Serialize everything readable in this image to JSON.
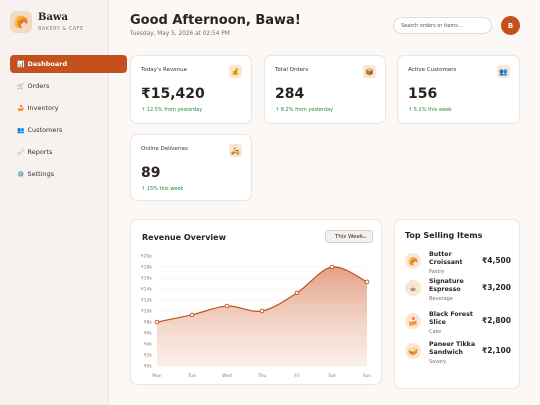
{
  "brand": {
    "icon": "🥐",
    "name": "Bawa",
    "tagline": "BAKERY & CAFE"
  },
  "nav": [
    {
      "icon": "📊",
      "label": "Dashboard",
      "active": true
    },
    {
      "icon": "🛒",
      "label": "Orders",
      "active": false
    },
    {
      "icon": "🍰",
      "label": "Inventory",
      "active": false
    },
    {
      "icon": "👥",
      "label": "Customers",
      "active": false
    },
    {
      "icon": "📈",
      "label": "Reports",
      "active": false
    },
    {
      "icon": "⚙️",
      "label": "Settings",
      "active": false
    }
  ],
  "header": {
    "greeting": "Good Afternoon, Bawa!",
    "date": "Tuesday, May 5, 2026 at 02:54 PM",
    "search": "Search orders or items...",
    "avatar": "B"
  },
  "stats": [
    {
      "label": "Today's Revenue",
      "icon": "💰",
      "value": "₹15,420",
      "change": "↑ 12.5% from yesterday"
    },
    {
      "label": "Total Orders",
      "icon": "📦",
      "value": "284",
      "change": "↑ 8.2% from yesterday"
    },
    {
      "label": "Active Customers",
      "icon": "👥",
      "value": "156",
      "change": "↑ 5.1% this week"
    },
    {
      "label": "Online Deliveries",
      "icon": "🛵",
      "value": "89",
      "change": "↑ 15% this week"
    }
  ],
  "range_select": "This Week",
  "chart_data": {
    "type": "line",
    "title": "Revenue Overview",
    "categories": [
      "Mon",
      "Tue",
      "Wed",
      "Thu",
      "Fri",
      "Sat",
      "Sun"
    ],
    "values": [
      8000,
      9300,
      10900,
      10000,
      13300,
      18000,
      15300
    ],
    "color": "#c4501b",
    "ylim": [
      0,
      20000
    ],
    "yticks": [
      {
        "value": 0,
        "label": "₹0k"
      },
      {
        "value": 2000,
        "label": "₹2k"
      },
      {
        "value": 4000,
        "label": "₹4k"
      },
      {
        "value": 6000,
        "label": "₹6k"
      },
      {
        "value": 8000,
        "label": "₹8k"
      },
      {
        "value": 10000,
        "label": "₹10k"
      },
      {
        "value": 12000,
        "label": "₹12k"
      },
      {
        "value": 14000,
        "label": "₹14k"
      },
      {
        "value": 16000,
        "label": "₹16k"
      },
      {
        "value": 18000,
        "label": "₹18k"
      },
      {
        "value": 20000,
        "label": "₹20k"
      }
    ],
    "grid": true
  },
  "top_selling": {
    "title": "Top Selling Items",
    "items": [
      {
        "icon": "🥐",
        "name": "Butter Croissant",
        "category": "Pastry",
        "amount": "₹4,500"
      },
      {
        "icon": "☕",
        "name": "Signature Espresso",
        "category": "Beverage",
        "amount": "₹3,200"
      },
      {
        "icon": "🍰",
        "name": "Black Forest Slice",
        "category": "Cake",
        "amount": "₹2,800"
      },
      {
        "icon": "🥪",
        "name": "Paneer Tikka Sandwich",
        "category": "Savory",
        "amount": "₹2,100"
      }
    ]
  }
}
